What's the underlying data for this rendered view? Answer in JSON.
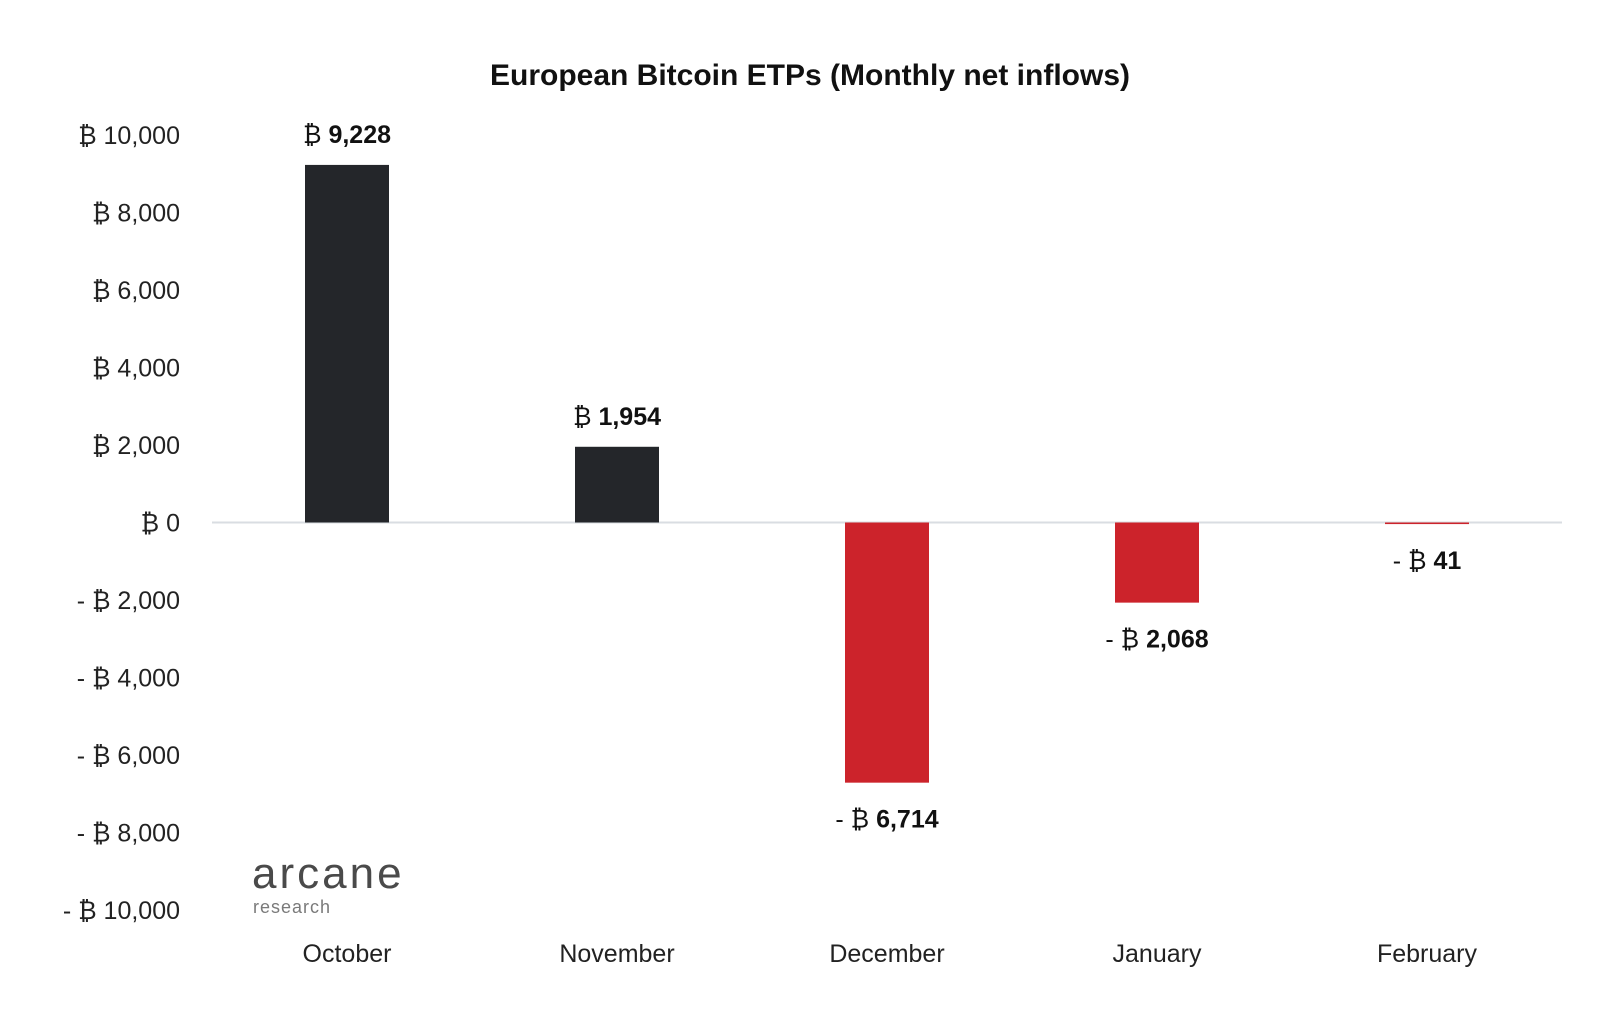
{
  "chart_data": {
    "type": "bar",
    "title": "European Bitcoin ETPs (Monthly net inflows)",
    "categories": [
      "October",
      "November",
      "December",
      "January",
      "February"
    ],
    "values": [
      9228,
      1954,
      -6714,
      -2068,
      -41
    ],
    "data_labels": [
      "₿ 9,228",
      "₿ 1,954",
      "- ₿ 6,714",
      "- ₿ 2,068",
      "- ₿ 41"
    ],
    "y_ticks": [
      10000,
      8000,
      6000,
      4000,
      2000,
      0,
      -2000,
      -4000,
      -6000,
      -8000,
      -10000
    ],
    "y_tick_labels": [
      "₿ 10,000",
      "₿ 8,000",
      "₿ 6,000",
      "₿ 4,000",
      "₿ 2,000",
      "₿ 0",
      "- ₿ 2,000",
      "- ₿ 4,000",
      "- ₿ 6,000",
      "- ₿ 8,000",
      "- ₿ 10,000"
    ],
    "ylim": [
      -10000,
      10000
    ],
    "xlabel": "",
    "ylabel": "",
    "grid": false,
    "colors": {
      "positive": "#24262a",
      "negative": "#cc232b",
      "zero_line": "#d9dde2"
    }
  },
  "logo": {
    "main": "arcane",
    "sub": "research"
  }
}
